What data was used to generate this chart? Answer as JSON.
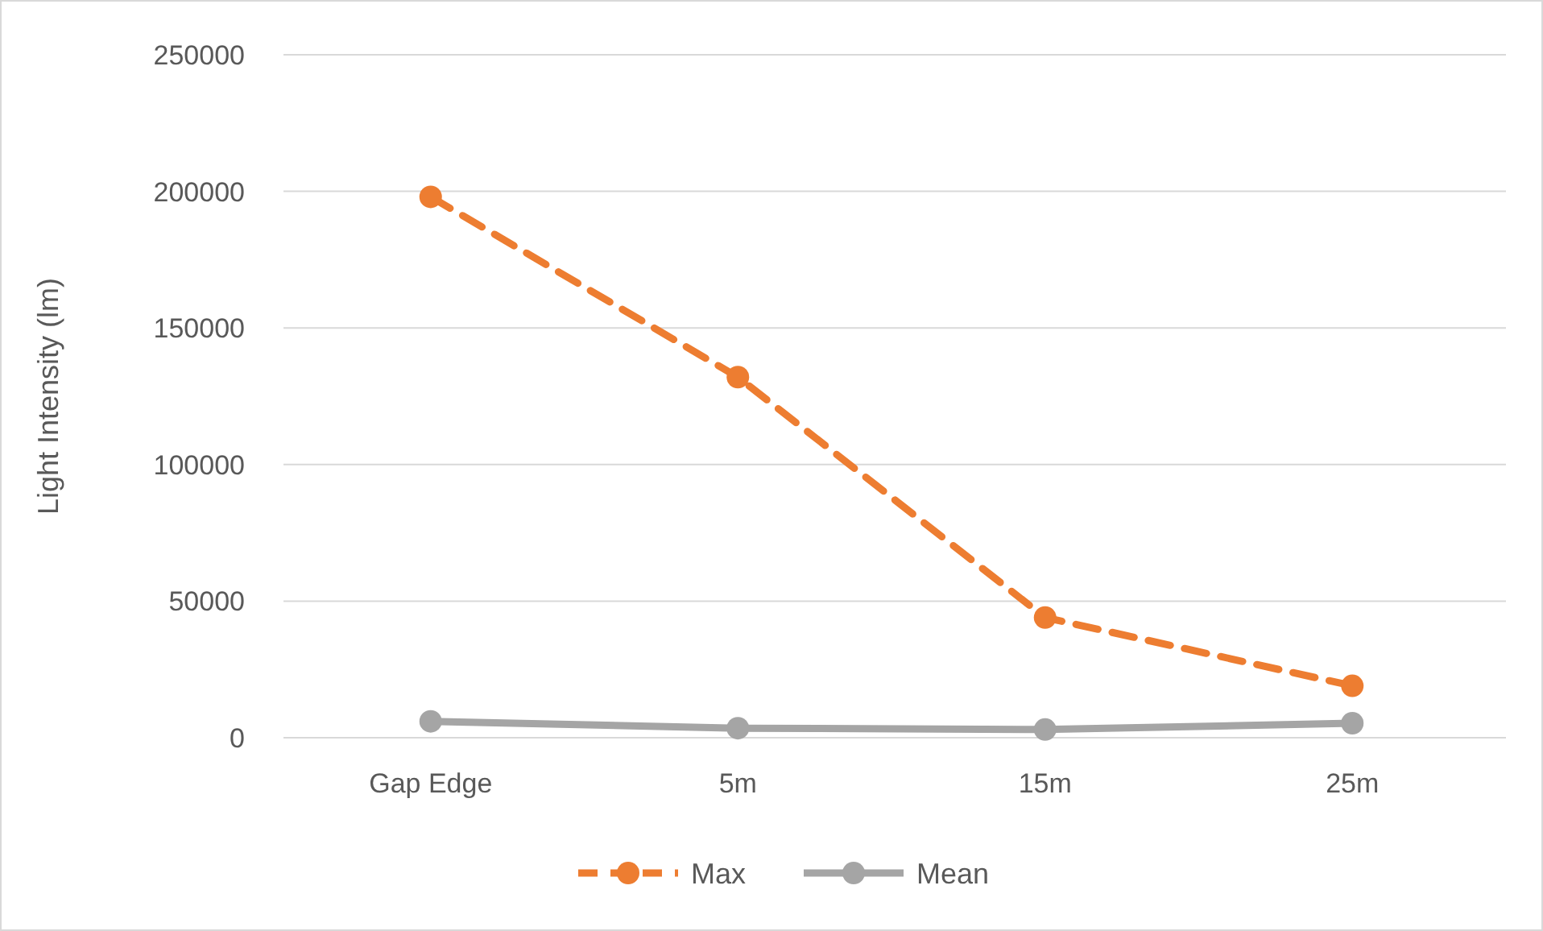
{
  "chart_data": {
    "type": "line",
    "ylabel": "Light Intensity (lm)",
    "categories": [
      "Gap Edge",
      "5m",
      "15m",
      "25m"
    ],
    "series": [
      {
        "name": "Max",
        "color": "#ed7d31",
        "values": [
          198000,
          132000,
          44000,
          19000
        ],
        "line_style": "dashed"
      },
      {
        "name": "Mean",
        "color": "#a5a5a5",
        "values": [
          6000,
          3500,
          3000,
          5300
        ],
        "line_style": "solid"
      }
    ],
    "ylim": [
      0,
      250000
    ],
    "yticks": [
      0,
      50000,
      100000,
      150000,
      200000,
      250000
    ],
    "grid": "y",
    "legend": "bottom",
    "marker": "circle"
  }
}
